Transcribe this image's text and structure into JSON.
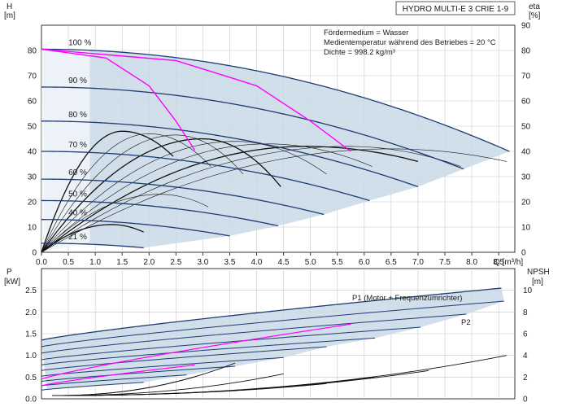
{
  "chart_data": [
    {
      "type": "line",
      "name": "pump-curve",
      "title": "HYDRO MULTI-E 3 CRIE 1-9",
      "ylabel_left": [
        "H",
        "[m]"
      ],
      "ylabel_right": [
        "eta",
        "[%]"
      ],
      "xlabel": "Q [m³/h]",
      "xlim": [
        0,
        8.8
      ],
      "ylim": [
        0,
        90
      ],
      "xticks": [
        "0.0",
        "0.5",
        "1.0",
        "1.5",
        "2.0",
        "2.5",
        "3.0",
        "3.5",
        "4.0",
        "4.5",
        "5.0",
        "5.5",
        "6.0",
        "6.5",
        "7.0",
        "7.5",
        "8.0",
        "8.5"
      ],
      "yticks": [
        0,
        10,
        20,
        30,
        40,
        50,
        60,
        70,
        80,
        90
      ],
      "grid": true,
      "notes": [
        "Fördermedium = Wasser",
        "Medientemperatur während des Betriebes = 20 °C",
        "Dichte = 998.2 kg/m³"
      ],
      "speed_curves": [
        {
          "label": "100 %",
          "shutoff": 80.5,
          "qmax": 8.7,
          "hend": 40
        },
        {
          "label": "90 %",
          "shutoff": 65.5,
          "qmax": 7.85,
          "hend": 33
        },
        {
          "label": "80 %",
          "shutoff": 52,
          "qmax": 7.0,
          "hend": 26
        },
        {
          "label": "70 %",
          "shutoff": 40,
          "qmax": 6.1,
          "hend": 20.5
        },
        {
          "label": "60 %",
          "shutoff": 29,
          "qmax": 5.25,
          "hend": 15
        },
        {
          "label": "50 %",
          "shutoff": 20.5,
          "qmax": 4.4,
          "hend": 10.5
        },
        {
          "label": "40 %",
          "shutoff": 13,
          "qmax": 3.5,
          "hend": 6.5
        },
        {
          "label": "21 %",
          "shutoff": 3.6,
          "qmax": 1.9,
          "hend": 1.8
        }
      ],
      "limit_curves": [
        {
          "color": "#ff00ff",
          "points": [
            [
              0,
              80.5
            ],
            [
              1.2,
              77
            ],
            [
              2.0,
              66
            ],
            [
              2.5,
              52
            ],
            [
              2.85,
              40.5
            ]
          ]
        },
        {
          "color": "#ff00ff",
          "points": [
            [
              0,
              80.5
            ],
            [
              2.5,
              76
            ],
            [
              4.0,
              66
            ],
            [
              5.0,
              52
            ],
            [
              5.75,
              40
            ]
          ]
        }
      ],
      "efficiency_curves": [
        {
          "peak_q": 1.5,
          "peak_eta": 48,
          "end_q": 2.45,
          "end_eta": 38
        },
        {
          "peak_q": 2.0,
          "peak_eta": 47,
          "end_q": 3.15,
          "end_eta": 34
        },
        {
          "peak_q": 2.5,
          "peak_eta": 46.5,
          "end_q": 3.75,
          "end_eta": 31
        },
        {
          "peak_q": 3.0,
          "peak_eta": 45,
          "end_q": 4.45,
          "end_eta": 26
        },
        {
          "peak_q": 3.6,
          "peak_eta": 44,
          "end_q": 5.3,
          "end_eta": 31
        },
        {
          "peak_q": 4.2,
          "peak_eta": 43,
          "end_q": 6.15,
          "end_eta": 34
        },
        {
          "peak_q": 4.9,
          "peak_eta": 42,
          "end_q": 7.0,
          "end_eta": 36
        },
        {
          "peak_q": 5.7,
          "peak_eta": 42,
          "end_q": 7.8,
          "end_eta": 34
        },
        {
          "peak_q": 6.5,
          "peak_eta": 41,
          "end_q": 8.65,
          "end_eta": 36
        },
        {
          "peak_q": 1.3,
          "peak_eta": 11,
          "end_q": 1.9,
          "end_eta": 8
        },
        {
          "peak_q": 2.2,
          "peak_eta": 23,
          "end_q": 3.1,
          "end_eta": 18
        }
      ]
    },
    {
      "type": "line",
      "name": "power-npsh",
      "ylabel_left": [
        "P",
        "[kW]"
      ],
      "ylabel_right": [
        "NPSH",
        "[m]"
      ],
      "xlim": [
        0,
        8.8
      ],
      "ylim": [
        0,
        3.0
      ],
      "yticks": [
        "0.0",
        "0.5",
        "1.0",
        "1.5",
        "2.0",
        "2.5"
      ],
      "y2ticks": [
        0,
        2,
        4,
        6,
        8,
        10
      ],
      "grid": true,
      "annotations": [
        "P1 (Motor + Frequenzumrichter)",
        "P2"
      ],
      "power_curves": [
        {
          "start": 1.35,
          "q_end": 8.55,
          "end": 2.55
        },
        {
          "start": 1.2,
          "q_end": 8.6,
          "end": 2.25
        },
        {
          "start": 1.05,
          "q_end": 7.9,
          "end": 1.95
        },
        {
          "start": 0.9,
          "q_end": 7.05,
          "end": 1.65
        },
        {
          "start": 0.78,
          "q_end": 6.2,
          "end": 1.4
        },
        {
          "start": 0.65,
          "q_end": 5.3,
          "end": 1.2
        },
        {
          "start": 0.52,
          "q_end": 4.5,
          "end": 0.95
        },
        {
          "start": 0.4,
          "q_end": 3.6,
          "end": 0.75
        },
        {
          "start": 0.3,
          "q_end": 2.7,
          "end": 0.55
        },
        {
          "start": 0.2,
          "q_end": 1.9,
          "end": 0.38
        }
      ],
      "limit_power_curves": [
        {
          "color": "#ff00ff",
          "start": 0.45,
          "q_end": 5.75,
          "end": 1.72
        },
        {
          "color": "#ff00ff",
          "start": 0.3,
          "q_end": 2.85,
          "end": 0.78
        }
      ],
      "npsh_curves": [
        {
          "q_start": 0.2,
          "q_end": 8.65,
          "npsh_end": 4.0
        },
        {
          "q_start": 0.2,
          "q_end": 7.2,
          "npsh_end": 2.6
        },
        {
          "q_start": 0.2,
          "q_end": 6.2,
          "npsh_end": 2.0
        },
        {
          "q_start": 0.2,
          "q_end": 5.3,
          "npsh_end": 1.4
        },
        {
          "q_start": 0.2,
          "q_end": 4.5,
          "npsh_end": 2.3
        },
        {
          "q_start": 0.2,
          "q_end": 3.6,
          "npsh_end": 3.3
        },
        {
          "q_start": 0.2,
          "q_end": 2.9,
          "npsh_end": 2.1
        }
      ]
    }
  ]
}
